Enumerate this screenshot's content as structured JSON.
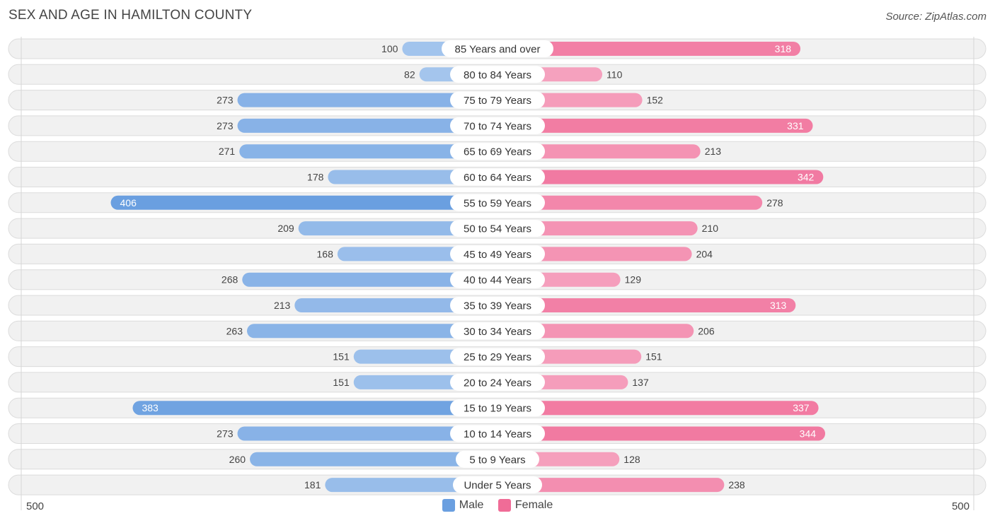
{
  "title": "SEX AND AGE IN HAMILTON COUNTY",
  "source": "Source: ZipAtlas.com",
  "colors": {
    "male": "#6a9fe0",
    "male_light": "#a9c8ee",
    "female": "#f06c97",
    "female_light": "#f6a8c3"
  },
  "legend": {
    "male": "Male",
    "female": "Female"
  },
  "axis": {
    "left_label": "500",
    "right_label": "500"
  },
  "chart_data": {
    "type": "bar",
    "orientation": "horizontal-diverging",
    "title": "SEX AND AGE IN HAMILTON COUNTY",
    "xlim": [
      -500,
      500
    ],
    "categories": [
      "85 Years and over",
      "80 to 84 Years",
      "75 to 79 Years",
      "70 to 74 Years",
      "65 to 69 Years",
      "60 to 64 Years",
      "55 to 59 Years",
      "50 to 54 Years",
      "45 to 49 Years",
      "40 to 44 Years",
      "35 to 39 Years",
      "30 to 34 Years",
      "25 to 29 Years",
      "20 to 24 Years",
      "15 to 19 Years",
      "10 to 14 Years",
      "5 to 9 Years",
      "Under 5 Years"
    ],
    "series": [
      {
        "name": "Male",
        "values": [
          100,
          82,
          273,
          273,
          271,
          178,
          406,
          209,
          168,
          268,
          213,
          263,
          151,
          151,
          383,
          273,
          260,
          181
        ]
      },
      {
        "name": "Female",
        "values": [
          318,
          110,
          152,
          331,
          213,
          342,
          278,
          210,
          204,
          129,
          313,
          206,
          151,
          137,
          337,
          344,
          128,
          238
        ]
      }
    ]
  }
}
